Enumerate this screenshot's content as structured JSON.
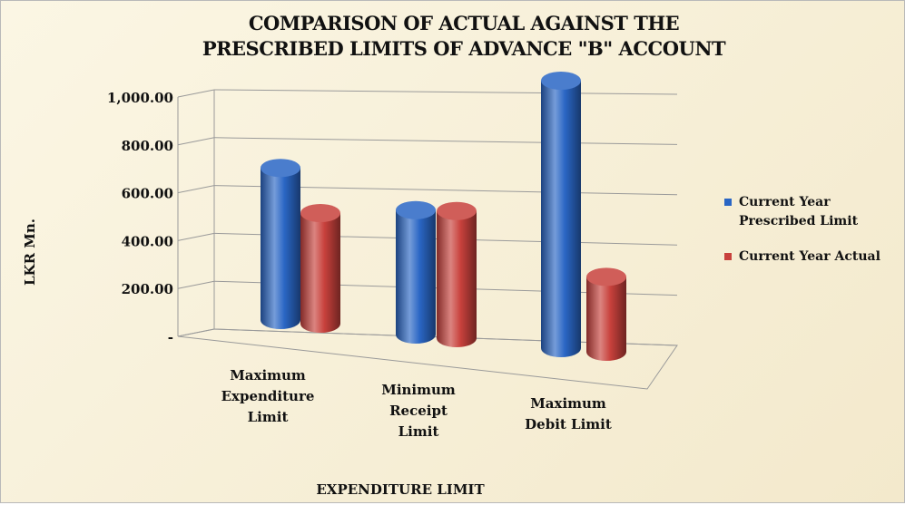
{
  "chart_data": {
    "type": "bar",
    "title": [
      "COMPARISON OF ACTUAL AGAINST THE",
      "PRESCRIBED LIMITS OF ADVANCE \"B\" ACCOUNT"
    ],
    "categories": [
      [
        "Maximum",
        "Expenditure",
        "Limit"
      ],
      [
        "Minimum",
        "Receipt",
        "Limit"
      ],
      [
        "Maximum",
        "Debit Limit"
      ]
    ],
    "series": [
      {
        "name": "Current Year Prescribed Limit",
        "values": [
          550,
          450,
          1000
        ],
        "color": "#2a66c4"
      },
      {
        "name": "Current Year Actual",
        "values": [
          400,
          460,
          280
        ],
        "color": "#c8413c"
      }
    ],
    "ylabel": "LKR Mn.",
    "xlabel": "EXPENDITURE LIMIT",
    "ylim": [
      0,
      1000
    ],
    "yticks": [
      {
        "value": 0,
        "label": "-"
      },
      {
        "value": 200,
        "label": "200.00"
      },
      {
        "value": 400,
        "label": "400.00"
      },
      {
        "value": 600,
        "label": "600.00"
      },
      {
        "value": 800,
        "label": "800.00"
      },
      {
        "value": 1000,
        "label": "1,000.00"
      }
    ],
    "grid": true,
    "legend_position": "right",
    "style": "3d-cylinder"
  }
}
